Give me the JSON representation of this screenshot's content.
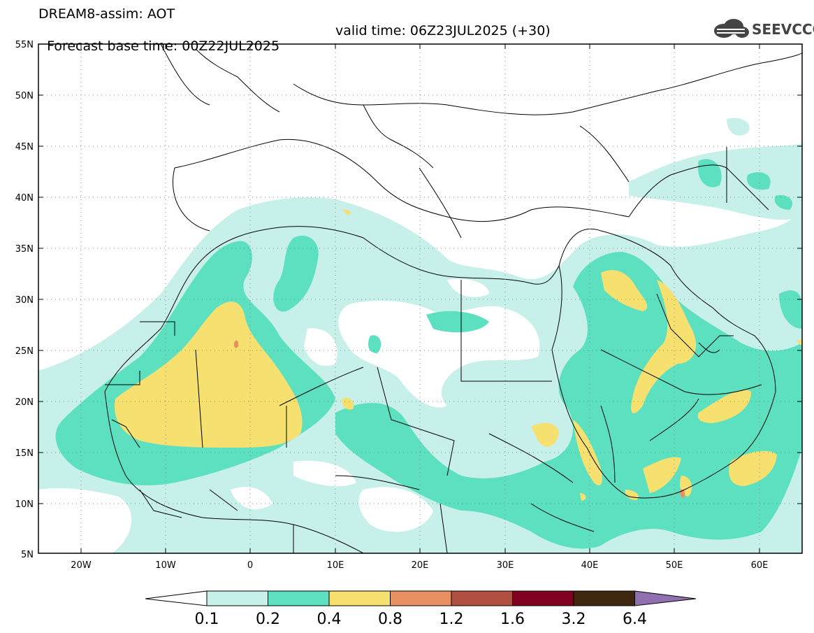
{
  "header": {
    "model_line": "DREAM8-assim: AOT",
    "base_time": "Forecast base time: 00Z22JUL2025",
    "valid_time": "valid time: 06Z23JUL2025 (+30)"
  },
  "logo": {
    "text": "SEEVCCC",
    "icon": "cloud-logo-icon"
  },
  "map_axes": {
    "lat_labels": [
      "55N",
      "50N",
      "45N",
      "40N",
      "35N",
      "30N",
      "25N",
      "20N",
      "15N",
      "10N",
      "5N"
    ],
    "lon_labels": [
      "20W",
      "10W",
      "0",
      "10E",
      "20E",
      "30E",
      "40E",
      "50E",
      "60E"
    ],
    "lat_range": [
      5,
      55
    ],
    "lon_range": [
      -25,
      65
    ]
  },
  "colorbar": {
    "labels": [
      "0.1",
      "0.2",
      "0.4",
      "0.8",
      "1.2",
      "1.6",
      "3.2",
      "6.4"
    ],
    "colors": [
      "#ffffff",
      "#c8f0ea",
      "#5ce0c0",
      "#f5e070",
      "#e89060",
      "#b05040",
      "#800020",
      "#402810",
      "#9070b0"
    ]
  },
  "field_colors": {
    "level_0_1": "#c8f0ea",
    "level_0_2": "#5ce0c0",
    "level_0_4": "#f5e070",
    "level_0_8": "#e89060"
  }
}
